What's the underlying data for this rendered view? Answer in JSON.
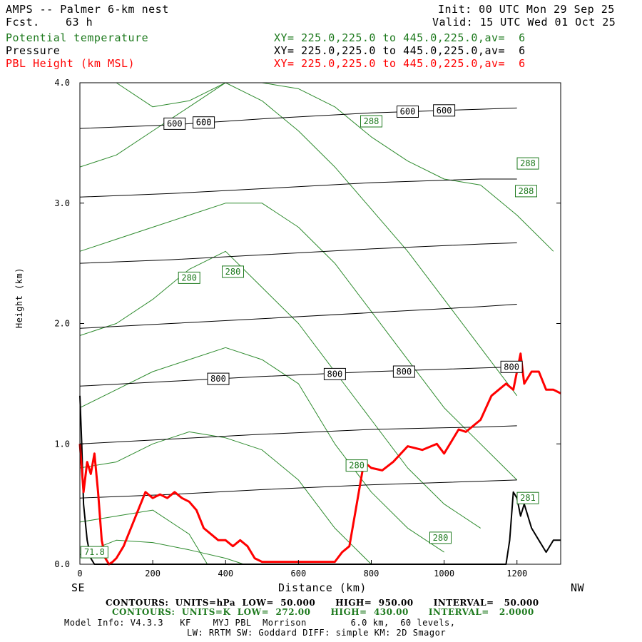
{
  "header": {
    "title": "AMPS -- Palmer 6-km nest",
    "fcst_label": "Fcst.",
    "fcst_value": "63 h",
    "init": "Init: 00 UTC Mon 29 Sep 25",
    "valid": "Valid: 15 UTC Wed 01 Oct 25"
  },
  "fields": [
    {
      "name": "Potential temperature",
      "xy": "XY= 225.0,225.0 to 445.0,225.0,av=  6",
      "color": "#1e7a1e"
    },
    {
      "name": "Pressure",
      "xy": "XY= 225.0,225.0 to 445.0,225.0,av=  6",
      "color": "#000000"
    },
    {
      "name": "PBL Height (km MSL)",
      "xy": "XY= 225.0,225.0 to 445.0,225.0,av=  6",
      "color": "#ff0000"
    }
  ],
  "axes": {
    "xlabel": "Distance (km)",
    "ylabel": "Height (km)",
    "left_end": "SE",
    "right_end": "NW",
    "xticks": [
      "0",
      "200",
      "400",
      "600",
      "800",
      "1000",
      "1200"
    ],
    "yticks": [
      "0.0",
      "1.0",
      "2.0",
      "3.0",
      "4.0"
    ]
  },
  "footer": {
    "pressure_contours": "CONTOURS:  UNITS=hPa  LOW=  50.000      HIGH=  950.00      INTERVAL=   50.000",
    "theta_contours": "CONTOURS:  UNITS=K  LOW=  272.00      HIGH=  430.00      INTERVAL=   2.0000",
    "model_info_1": "Model Info: V4.3.3   KF    MYJ PBL  Morrison        6.0 km,  60 levels,",
    "model_info_2": "LW: RRTM SW: Goddard DIFF: simple KM: 2D Smagor"
  },
  "chart_data": {
    "type": "line",
    "title": "",
    "xlabel": "Distance (km)",
    "ylabel": "Height (km)",
    "xlim": [
      0,
      1320
    ],
    "ylim": [
      0,
      4.0
    ],
    "grid": false,
    "pressure_isobars": [
      {
        "y": [
          0.55,
          0.58,
          0.62,
          0.66,
          0.69,
          0.7
        ]
      },
      {
        "y": [
          1.0,
          1.04,
          1.08,
          1.12,
          1.14,
          1.15
        ]
      },
      {
        "y": [
          1.48,
          1.52,
          1.56,
          1.6,
          1.63,
          1.64
        ]
      },
      {
        "y": [
          1.96,
          2.0,
          2.04,
          2.09,
          2.14,
          2.16
        ]
      },
      {
        "y": [
          2.5,
          2.53,
          2.57,
          2.62,
          2.66,
          2.67
        ]
      },
      {
        "y": [
          3.05,
          3.08,
          3.12,
          3.17,
          3.2,
          3.2
        ]
      },
      {
        "y": [
          3.62,
          3.65,
          3.7,
          3.75,
          3.78,
          3.79
        ]
      }
    ],
    "pressure_x": [
      0,
      250,
      500,
      800,
      1100,
      1200
    ],
    "pressure_labels": [
      {
        "text": "600",
        "x": 260,
        "y": 3.66
      },
      {
        "text": "600",
        "x": 340,
        "y": 3.67
      },
      {
        "text": "600",
        "x": 900,
        "y": 3.76
      },
      {
        "text": "600",
        "x": 1000,
        "y": 3.77
      },
      {
        "text": "800",
        "x": 380,
        "y": 1.54
      },
      {
        "text": "800",
        "x": 700,
        "y": 1.58
      },
      {
        "text": "800",
        "x": 890,
        "y": 1.6
      },
      {
        "text": "800",
        "x": 1185,
        "y": 1.64
      }
    ],
    "theta_labels": [
      {
        "text": "288",
        "x": 800,
        "y": 3.68
      },
      {
        "text": "288",
        "x": 1230,
        "y": 3.33
      },
      {
        "text": "288",
        "x": 1225,
        "y": 3.1
      },
      {
        "text": "280",
        "x": 300,
        "y": 2.38
      },
      {
        "text": "280",
        "x": 420,
        "y": 2.43
      },
      {
        "text": "280",
        "x": 760,
        "y": 0.82
      },
      {
        "text": "280",
        "x": 990,
        "y": 0.22
      },
      {
        "text": "281",
        "x": 1230,
        "y": 0.55
      },
      {
        "text": "71.8",
        "x": 40,
        "y": 0.1
      }
    ],
    "pbl_height": {
      "name": "PBL Height (km MSL)",
      "x": [
        0,
        10,
        20,
        30,
        40,
        50,
        60,
        70,
        80,
        90,
        100,
        120,
        140,
        160,
        180,
        200,
        220,
        240,
        260,
        280,
        300,
        320,
        340,
        360,
        380,
        400,
        420,
        440,
        460,
        480,
        500,
        550,
        600,
        650,
        700,
        720,
        740,
        760,
        780,
        800,
        830,
        860,
        900,
        940,
        980,
        1000,
        1040,
        1060,
        1080,
        1100,
        1130,
        1150,
        1170,
        1190,
        1200,
        1210,
        1220,
        1240,
        1260,
        1280,
        1300,
        1320
      ],
      "y": [
        1.0,
        0.6,
        0.85,
        0.75,
        0.92,
        0.6,
        0.2,
        0.05,
        0.0,
        0.02,
        0.05,
        0.15,
        0.3,
        0.45,
        0.6,
        0.55,
        0.58,
        0.55,
        0.6,
        0.55,
        0.52,
        0.45,
        0.3,
        0.25,
        0.2,
        0.2,
        0.15,
        0.2,
        0.15,
        0.05,
        0.02,
        0.02,
        0.02,
        0.02,
        0.02,
        0.1,
        0.15,
        0.5,
        0.85,
        0.8,
        0.78,
        0.85,
        0.98,
        0.95,
        1.0,
        0.92,
        1.12,
        1.1,
        1.15,
        1.2,
        1.4,
        1.45,
        1.5,
        1.45,
        1.6,
        1.75,
        1.5,
        1.6,
        1.6,
        1.45,
        1.45,
        1.42
      ],
      "color": "#ff0000"
    },
    "terrain": {
      "x": [
        0,
        5,
        10,
        20,
        30,
        40,
        50,
        1170,
        1180,
        1190,
        1200,
        1210,
        1220,
        1240,
        1260,
        1280,
        1300,
        1320
      ],
      "y": [
        1.4,
        1.0,
        0.5,
        0.2,
        0.05,
        0.0,
        0.0,
        0.0,
        0.2,
        0.6,
        0.55,
        0.4,
        0.5,
        0.3,
        0.2,
        0.1,
        0.2,
        0.2
      ]
    },
    "theta_isentropes": [
      {
        "x": [
          0,
          100,
          200,
          300,
          400,
          450
        ],
        "y": [
          0.08,
          0.2,
          0.18,
          0.12,
          0.05,
          0.0
        ]
      },
      {
        "x": [
          0,
          100,
          200,
          300,
          350
        ],
        "y": [
          0.35,
          0.4,
          0.45,
          0.25,
          0.0
        ]
      },
      {
        "x": [
          0,
          100,
          200,
          300,
          400,
          500,
          600,
          700,
          800
        ],
        "y": [
          0.8,
          0.85,
          1.0,
          1.1,
          1.05,
          0.95,
          0.7,
          0.3,
          0.0
        ]
      },
      {
        "x": [
          0,
          100,
          200,
          300,
          400,
          500,
          600,
          700,
          800,
          900,
          1000
        ],
        "y": [
          1.3,
          1.45,
          1.6,
          1.7,
          1.8,
          1.7,
          1.5,
          1.0,
          0.6,
          0.3,
          0.1
        ]
      },
      {
        "x": [
          0,
          100,
          200,
          300,
          400,
          500,
          600,
          700,
          800,
          900,
          1000,
          1100
        ],
        "y": [
          1.9,
          2.0,
          2.2,
          2.45,
          2.6,
          2.3,
          2.0,
          1.6,
          1.2,
          0.8,
          0.5,
          0.3
        ]
      },
      {
        "x": [
          0,
          100,
          200,
          300,
          400,
          500,
          600,
          700,
          800,
          900,
          1000,
          1100,
          1200
        ],
        "y": [
          2.6,
          2.7,
          2.8,
          2.9,
          3.0,
          3.0,
          2.8,
          2.5,
          2.1,
          1.7,
          1.3,
          1.0,
          0.7
        ]
      },
      {
        "x": [
          0,
          100,
          200,
          300,
          400,
          500,
          600,
          700,
          800,
          900,
          1000,
          1100,
          1200
        ],
        "y": [
          3.3,
          3.4,
          3.6,
          3.8,
          4.0,
          3.85,
          3.6,
          3.3,
          2.95,
          2.6,
          2.2,
          1.8,
          1.4
        ]
      },
      {
        "x": [
          100,
          200,
          300,
          400,
          500,
          600,
          700,
          800,
          900,
          1000,
          1100,
          1200,
          1300
        ],
        "y": [
          4.0,
          3.8,
          3.85,
          4.0,
          4.0,
          3.95,
          3.8,
          3.55,
          3.35,
          3.2,
          3.15,
          2.9,
          2.6
        ]
      }
    ]
  }
}
